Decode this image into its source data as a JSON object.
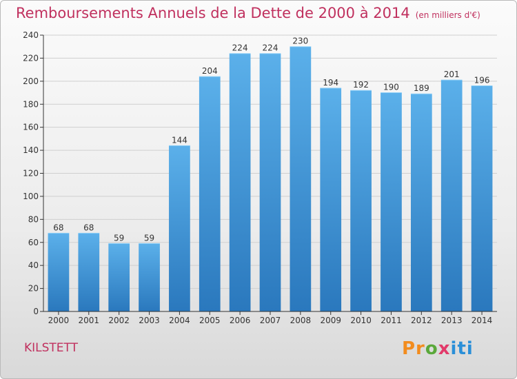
{
  "header": {
    "title": "Remboursements Annuels de la Dette de 2000 à 2014",
    "unit": "(en milliers d'€)"
  },
  "footer": {
    "commune": "KILSTETT",
    "brand": "Proxiti"
  },
  "colors": {
    "title": "#c0305e",
    "bar_top": "#5bb0ea",
    "bar_bottom": "#2a78bd",
    "axis": "#333333",
    "grid": "#cfcfcf"
  },
  "chart_data": {
    "type": "bar",
    "title": "Remboursements Annuels de la Dette de 2000 à 2014",
    "xlabel": "",
    "ylabel": "",
    "ylim": [
      0,
      240
    ],
    "yticks": [
      0,
      20,
      40,
      60,
      80,
      100,
      120,
      140,
      160,
      180,
      200,
      220,
      240
    ],
    "categories": [
      "2000",
      "2001",
      "2002",
      "2003",
      "2004",
      "2005",
      "2006",
      "2007",
      "2008",
      "2009",
      "2010",
      "2011",
      "2012",
      "2013",
      "2014"
    ],
    "values": [
      68,
      68,
      59,
      59,
      144,
      204,
      224,
      224,
      230,
      194,
      192,
      190,
      189,
      201,
      196
    ],
    "grid": true
  }
}
